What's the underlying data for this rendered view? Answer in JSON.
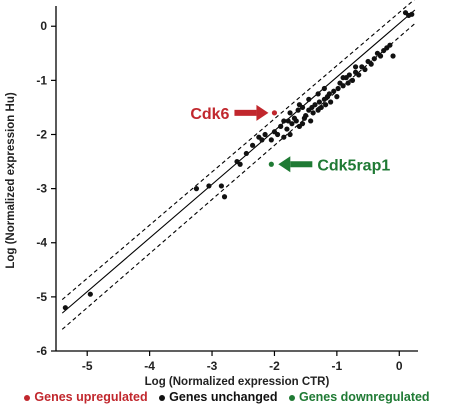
{
  "chart_data": {
    "type": "scatter",
    "xlabel": "Log (Normalized expression CTR)",
    "ylabel": "Log (Normalized expression Hu)",
    "xlim": [
      -5.5,
      0.3
    ],
    "ylim": [
      -6,
      0.3
    ],
    "xticks": [
      "-5",
      "-4",
      "-3",
      "-2",
      "-1",
      "0"
    ],
    "yticks": [
      "0",
      "-1",
      "-2",
      "-3",
      "-4",
      "-5",
      "-6"
    ],
    "grid": false,
    "legend_position": "bottom",
    "colors": {
      "up": "#c1272d",
      "unchanged": "#111111",
      "down": "#1f7a34",
      "fit": "#000000"
    },
    "legend": [
      {
        "label": "Genes upregulated",
        "color": "#c1272d"
      },
      {
        "label": "Genes unchanged",
        "color": "#111111"
      },
      {
        "label": "Genes downregulated",
        "color": "#1f7a34"
      }
    ],
    "series": [
      {
        "name": "Genes unchanged",
        "color": "#111111",
        "points": [
          [
            -5.35,
            -5.2
          ],
          [
            -4.95,
            -4.95
          ],
          [
            -3.25,
            -3.0
          ],
          [
            -3.05,
            -2.95
          ],
          [
            -2.85,
            -2.95
          ],
          [
            -2.8,
            -3.15
          ],
          [
            -2.6,
            -2.5
          ],
          [
            -2.55,
            -2.55
          ],
          [
            -2.45,
            -2.35
          ],
          [
            -2.35,
            -2.2
          ],
          [
            -2.25,
            -2.05
          ],
          [
            -2.15,
            -2.0
          ],
          [
            -2.05,
            -2.1
          ],
          [
            -2.0,
            -1.95
          ],
          [
            -1.95,
            -2.0
          ],
          [
            -1.9,
            -1.85
          ],
          [
            -1.85,
            -1.75
          ],
          [
            -1.8,
            -1.9
          ],
          [
            -1.78,
            -1.75
          ],
          [
            -1.75,
            -1.6
          ],
          [
            -1.72,
            -1.8
          ],
          [
            -1.68,
            -1.7
          ],
          [
            -1.65,
            -1.75
          ],
          [
            -1.62,
            -1.55
          ],
          [
            -1.6,
            -1.85
          ],
          [
            -1.55,
            -1.5
          ],
          [
            -1.52,
            -1.7
          ],
          [
            -1.5,
            -1.65
          ],
          [
            -1.45,
            -1.55
          ],
          [
            -1.42,
            -1.75
          ],
          [
            -1.4,
            -1.5
          ],
          [
            -1.38,
            -1.6
          ],
          [
            -1.35,
            -1.45
          ],
          [
            -1.3,
            -1.55
          ],
          [
            -1.28,
            -1.4
          ],
          [
            -1.25,
            -1.5
          ],
          [
            -1.2,
            -1.35
          ],
          [
            -1.18,
            -1.45
          ],
          [
            -1.15,
            -1.3
          ],
          [
            -1.12,
            -1.25
          ],
          [
            -1.1,
            -1.4
          ],
          [
            -1.05,
            -1.2
          ],
          [
            -1.0,
            -1.3
          ],
          [
            -0.98,
            -1.15
          ],
          [
            -0.95,
            -1.05
          ],
          [
            -0.9,
            -1.1
          ],
          [
            -0.85,
            -0.95
          ],
          [
            -0.82,
            -1.05
          ],
          [
            -0.8,
            -0.9
          ],
          [
            -0.75,
            -1.0
          ],
          [
            -0.7,
            -0.85
          ],
          [
            -0.65,
            -0.9
          ],
          [
            -0.6,
            -0.75
          ],
          [
            -0.55,
            -0.8
          ],
          [
            -0.5,
            -0.65
          ],
          [
            -0.45,
            -0.7
          ],
          [
            -0.4,
            -0.6
          ],
          [
            -0.35,
            -0.5
          ],
          [
            -0.3,
            -0.55
          ],
          [
            -0.25,
            -0.45
          ],
          [
            -0.2,
            -0.4
          ],
          [
            -0.15,
            -0.35
          ],
          [
            -0.1,
            -0.55
          ],
          [
            0.1,
            0.25
          ],
          [
            0.15,
            0.2
          ],
          [
            0.2,
            0.22
          ],
          [
            -1.75,
            -2.0
          ],
          [
            -1.6,
            -1.45
          ],
          [
            -1.45,
            -1.35
          ],
          [
            -1.3,
            -1.25
          ],
          [
            -0.9,
            -0.95
          ],
          [
            -0.7,
            -0.75
          ],
          [
            -1.85,
            -2.05
          ],
          [
            -2.2,
            -2.1
          ],
          [
            -1.55,
            -1.8
          ],
          [
            -1.2,
            -1.15
          ]
        ]
      },
      {
        "name": "Genes upregulated",
        "color": "#c1272d",
        "points": [
          [
            -2.0,
            -1.6
          ]
        ]
      },
      {
        "name": "Genes downregulated",
        "color": "#1f7a34",
        "points": [
          [
            -2.05,
            -2.55
          ]
        ]
      }
    ],
    "fit_line": {
      "points": [
        [
          -5.4,
          -5.3
        ],
        [
          0.25,
          0.3
        ]
      ]
    },
    "band_upper": {
      "points": [
        [
          -5.4,
          -5.05
        ],
        [
          0.25,
          0.5
        ]
      ]
    },
    "band_lower": {
      "points": [
        [
          -5.4,
          -5.6
        ],
        [
          0.25,
          0.05
        ]
      ]
    },
    "annotations": [
      {
        "text": "Cdk6",
        "color": "#c1272d",
        "target": [
          -2.0,
          -1.6
        ],
        "direction": "left"
      },
      {
        "text": "Cdk5rap1",
        "color": "#1f7a34",
        "target": [
          -2.05,
          -2.55
        ],
        "direction": "right"
      }
    ]
  }
}
